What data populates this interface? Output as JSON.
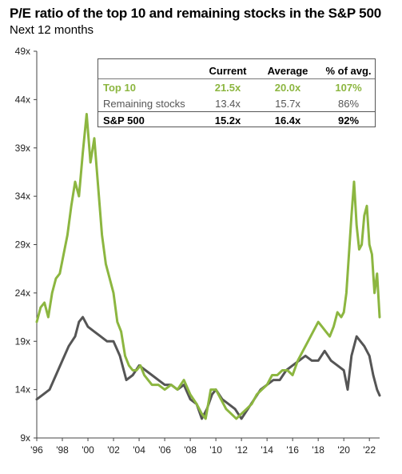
{
  "title": "P/E ratio of the top 10 and remaining stocks in the S&P 500",
  "subtitle": "Next 12 months",
  "table": {
    "headers": [
      "",
      "Current",
      "Average",
      "% of avg."
    ],
    "rows": [
      {
        "label": "Top 10",
        "current": "21.5x",
        "average": "20.0x",
        "pct": "107%"
      },
      {
        "label": "Remaining stocks",
        "current": "13.4x",
        "average": "15.7x",
        "pct": "86%"
      },
      {
        "label": "S&P 500",
        "current": "15.2x",
        "average": "16.4x",
        "pct": "92%"
      }
    ]
  },
  "chart_data": {
    "type": "line",
    "title": "P/E ratio of the top 10 and remaining stocks in the S&P 500",
    "subtitle": "Next 12 months",
    "ylim": [
      9,
      49
    ],
    "yticks": [
      "9x",
      "14x",
      "19x",
      "24x",
      "29x",
      "34x",
      "39x",
      "44x",
      "49x"
    ],
    "xlim": [
      1996,
      2022.8
    ],
    "xticks": [
      "'96",
      "'98",
      "'00",
      "'02",
      "'04",
      "'06",
      "'08",
      "'10",
      "'12",
      "'14",
      "'16",
      "'18",
      "'20",
      "'22"
    ],
    "grid": false,
    "colors": {
      "top10": "#8cb640",
      "remaining": "#555555"
    },
    "series": [
      {
        "name": "Top 10",
        "color": "#8cb640",
        "x": [
          1996.0,
          1996.3,
          1996.6,
          1996.9,
          1997.2,
          1997.5,
          1997.8,
          1998.1,
          1998.4,
          1998.7,
          1999.0,
          1999.3,
          1999.6,
          1999.9,
          2000.2,
          2000.5,
          2000.8,
          2001.1,
          2001.4,
          2001.7,
          2002.0,
          2002.3,
          2002.6,
          2002.9,
          2003.2,
          2003.5,
          2003.8,
          2004.1,
          2004.4,
          2004.7,
          2005.0,
          2005.5,
          2006.0,
          2006.5,
          2007.0,
          2007.5,
          2008.0,
          2008.5,
          2008.9,
          2009.2,
          2009.6,
          2010.0,
          2010.4,
          2010.8,
          2011.2,
          2011.6,
          2012.0,
          2012.4,
          2012.8,
          2013.2,
          2013.6,
          2014.0,
          2014.4,
          2014.8,
          2015.2,
          2015.6,
          2016.0,
          2016.4,
          2016.8,
          2017.2,
          2017.6,
          2018.0,
          2018.3,
          2018.6,
          2018.9,
          2019.2,
          2019.5,
          2019.8,
          2020.0,
          2020.2,
          2020.4,
          2020.6,
          2020.8,
          2021.0,
          2021.2,
          2021.4,
          2021.6,
          2021.8,
          2022.0,
          2022.2,
          2022.4,
          2022.6,
          2022.8
        ],
        "y": [
          21.0,
          22.5,
          23.0,
          21.5,
          24.0,
          25.5,
          26.0,
          28.0,
          30.0,
          33.0,
          35.5,
          34.0,
          38.5,
          42.5,
          37.5,
          40.0,
          35.0,
          30.0,
          27.0,
          25.5,
          24.0,
          21.0,
          20.0,
          17.5,
          16.5,
          16.0,
          16.0,
          16.5,
          15.5,
          15.0,
          14.5,
          14.5,
          14.0,
          14.5,
          14.0,
          15.0,
          13.5,
          12.5,
          11.5,
          11.0,
          14.0,
          14.0,
          13.0,
          12.0,
          11.5,
          11.0,
          11.5,
          12.0,
          12.5,
          13.5,
          14.0,
          14.5,
          15.5,
          15.5,
          16.0,
          16.0,
          15.5,
          17.0,
          18.0,
          19.0,
          20.0,
          21.0,
          20.5,
          20.0,
          19.5,
          20.5,
          22.0,
          21.5,
          22.0,
          24.0,
          28.0,
          32.0,
          35.5,
          31.0,
          28.5,
          29.0,
          32.0,
          33.0,
          29.0,
          28.0,
          24.0,
          26.0,
          21.5
        ]
      },
      {
        "name": "Remaining stocks",
        "color": "#555555",
        "x": [
          1996.0,
          1996.5,
          1997.0,
          1997.5,
          1998.0,
          1998.5,
          1999.0,
          1999.3,
          1999.6,
          2000.0,
          2000.5,
          2001.0,
          2001.5,
          2002.0,
          2002.5,
          2003.0,
          2003.5,
          2004.0,
          2004.5,
          2005.0,
          2005.5,
          2006.0,
          2006.5,
          2007.0,
          2007.5,
          2008.0,
          2008.5,
          2008.9,
          2009.3,
          2009.7,
          2010.0,
          2010.5,
          2011.0,
          2011.5,
          2012.0,
          2012.5,
          2013.0,
          2013.5,
          2014.0,
          2014.5,
          2015.0,
          2015.5,
          2016.0,
          2016.5,
          2017.0,
          2017.5,
          2018.0,
          2018.5,
          2019.0,
          2019.5,
          2020.0,
          2020.3,
          2020.6,
          2021.0,
          2021.3,
          2021.6,
          2022.0,
          2022.3,
          2022.6,
          2022.8
        ],
        "y": [
          13.0,
          13.5,
          14.0,
          15.5,
          17.0,
          18.5,
          19.5,
          21.0,
          21.5,
          20.5,
          20.0,
          19.5,
          19.0,
          19.0,
          17.5,
          15.0,
          15.5,
          16.5,
          16.0,
          15.5,
          15.0,
          14.5,
          14.5,
          14.0,
          14.5,
          13.0,
          12.5,
          11.0,
          12.0,
          13.5,
          14.0,
          13.0,
          12.5,
          12.0,
          11.0,
          12.0,
          13.0,
          14.0,
          14.5,
          15.0,
          15.0,
          16.0,
          16.5,
          17.0,
          17.5,
          17.0,
          17.0,
          18.0,
          17.0,
          16.5,
          16.0,
          14.0,
          17.5,
          19.5,
          19.0,
          18.5,
          17.5,
          15.5,
          14.0,
          13.4
        ]
      }
    ]
  }
}
